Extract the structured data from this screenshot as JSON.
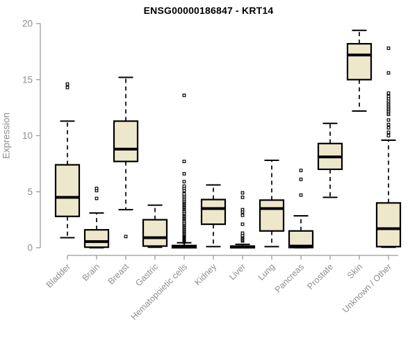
{
  "chart_data": {
    "type": "boxplot",
    "title": "ENSG00000186847 - KRT14",
    "ylabel": "Expression",
    "xlabel": "",
    "ylim": [
      0,
      20
    ],
    "yticks": [
      0,
      5,
      10,
      15,
      20
    ],
    "grid": false,
    "legend": "none",
    "box_fill": "#ede8cc",
    "box_stroke": "#000000",
    "axis_color": "#999999",
    "tick_label_color": "#8e8e8e",
    "categories": [
      "Bladder",
      "Brain",
      "Breast",
      "Gastric",
      "Hematopoietic cells",
      "Kidney",
      "Liver",
      "Lung",
      "Pancreas",
      "Prostate",
      "Skin",
      "Unknown / Other"
    ],
    "series": [
      {
        "category": "Bladder",
        "whisker_low": 0.9,
        "q1": 2.8,
        "median": 4.5,
        "q3": 7.4,
        "whisker_high": 11.3,
        "outliers": [
          14.3,
          14.6
        ]
      },
      {
        "category": "Brain",
        "whisker_low": 0.0,
        "q1": 0.05,
        "median": 0.55,
        "q3": 1.6,
        "whisker_high": 3.1,
        "outliers": [
          4.4,
          5.1,
          5.3
        ]
      },
      {
        "category": "Breast",
        "whisker_low": 3.4,
        "q1": 7.7,
        "median": 8.8,
        "q3": 11.3,
        "whisker_high": 15.2,
        "outliers": [
          1.0
        ]
      },
      {
        "category": "Gastric",
        "whisker_low": 0.05,
        "q1": 0.15,
        "median": 0.9,
        "q3": 2.5,
        "whisker_high": 3.8,
        "outliers": []
      },
      {
        "category": "Hematopoietic cells",
        "whisker_low": 0.0,
        "q1": 0.0,
        "median": 0.08,
        "q3": 0.2,
        "whisker_high": 0.45,
        "outliers": [
          0.5,
          0.55,
          0.6,
          0.65,
          0.7,
          0.75,
          0.8,
          0.85,
          0.9,
          0.95,
          1.0,
          1.05,
          1.1,
          1.15,
          1.2,
          1.3,
          1.4,
          1.5,
          1.6,
          1.7,
          1.8,
          1.9,
          2.0,
          2.1,
          2.2,
          2.35,
          2.5,
          2.6,
          2.7,
          2.8,
          2.9,
          3.0,
          3.1,
          3.25,
          3.4,
          3.5,
          3.6,
          3.7,
          3.8,
          3.9,
          4.0,
          4.1,
          4.2,
          4.35,
          4.5,
          4.65,
          4.8,
          5.1,
          5.3,
          5.5,
          5.9,
          6.6,
          7.7,
          13.6
        ]
      },
      {
        "category": "Kidney",
        "whisker_low": 0.1,
        "q1": 2.1,
        "median": 3.5,
        "q3": 4.3,
        "whisker_high": 5.6,
        "outliers": []
      },
      {
        "category": "Liver",
        "whisker_low": 0.0,
        "q1": 0.0,
        "median": 0.06,
        "q3": 0.15,
        "whisker_high": 0.3,
        "outliers": [
          0.6,
          0.7,
          0.8,
          0.9,
          1.0,
          1.1,
          1.3,
          2.1,
          2.9,
          3.2,
          3.4,
          4.5,
          4.9
        ]
      },
      {
        "category": "Lung",
        "whisker_low": 0.1,
        "q1": 1.5,
        "median": 3.5,
        "q3": 4.25,
        "whisker_high": 7.8,
        "outliers": []
      },
      {
        "category": "Pancreas",
        "whisker_low": 0.0,
        "q1": 0.02,
        "median": 0.15,
        "q3": 1.5,
        "whisker_high": 2.85,
        "outliers": [
          4.7,
          6.1,
          6.9
        ]
      },
      {
        "category": "Prostate",
        "whisker_low": 4.5,
        "q1": 7.0,
        "median": 8.1,
        "q3": 9.3,
        "whisker_high": 11.1,
        "outliers": []
      },
      {
        "category": "Skin",
        "whisker_low": 12.2,
        "q1": 15.0,
        "median": 17.2,
        "q3": 18.2,
        "whisker_high": 19.4,
        "outliers": []
      },
      {
        "category": "Unknown / Other",
        "whisker_low": 0.05,
        "q1": 0.1,
        "median": 1.7,
        "q3": 4.0,
        "whisker_high": 9.6,
        "outliers": [
          10.0,
          10.3,
          10.7,
          11.0,
          11.4,
          11.9,
          12.05,
          12.2,
          12.35,
          12.5,
          12.65,
          12.8,
          12.95,
          13.1,
          13.3,
          13.5,
          13.8,
          15.6,
          17.8
        ]
      }
    ]
  }
}
